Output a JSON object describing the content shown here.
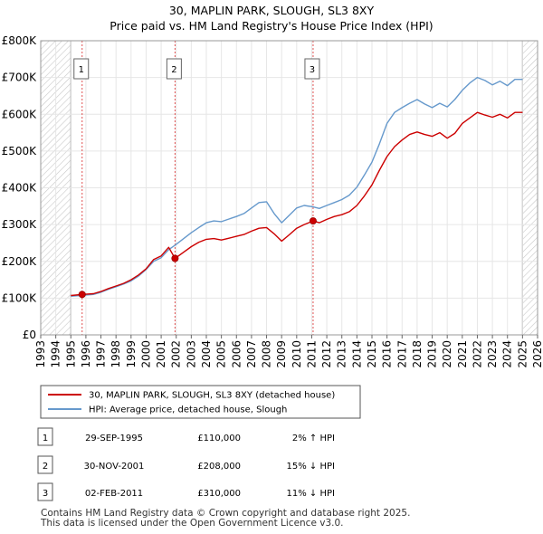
{
  "chart_data": {
    "type": "line",
    "title": "30, MAPLIN PARK, SLOUGH, SL3 8XY",
    "subtitle": "Price paid vs. HM Land Registry's House Price Index (HPI)",
    "xlabel": "",
    "ylabel": "",
    "xlim": [
      1993,
      2026
    ],
    "ylim": [
      0,
      800000
    ],
    "y_ticks": [
      0,
      100000,
      200000,
      300000,
      400000,
      500000,
      600000,
      700000,
      800000
    ],
    "y_tick_labels": [
      "£0",
      "£100K",
      "£200K",
      "£300K",
      "£400K",
      "£500K",
      "£600K",
      "£700K",
      "£800K"
    ],
    "x_ticks": [
      1993,
      1994,
      1995,
      1996,
      1997,
      1998,
      1999,
      2000,
      2001,
      2002,
      2003,
      2004,
      2005,
      2006,
      2007,
      2008,
      2009,
      2010,
      2011,
      2012,
      2013,
      2014,
      2015,
      2016,
      2017,
      2018,
      2019,
      2020,
      2021,
      2022,
      2023,
      2024,
      2025,
      2026
    ],
    "x_tick_labels": [
      "1993",
      "1994",
      "1995",
      "1996",
      "1997",
      "1998",
      "1999",
      "2000",
      "2001",
      "2002",
      "2003",
      "2004",
      "2005",
      "2006",
      "2007",
      "2008",
      "2009",
      "2010",
      "2011",
      "2012",
      "2013",
      "2014",
      "2015",
      "2016",
      "2017",
      "2018",
      "2019",
      "2020",
      "2021",
      "2022",
      "2023",
      "2024",
      "2025",
      "2026"
    ],
    "grid": true,
    "hatched_regions": [
      [
        1993,
        1995.0
      ],
      [
        2025.0,
        2026
      ]
    ],
    "series": [
      {
        "name": "30, MAPLIN PARK, SLOUGH, SL3 8XY (detached house)",
        "color": "#cc0000",
        "x": [
          1995.0,
          1995.75,
          1996.5,
          1997.0,
          1997.5,
          1998.0,
          1998.5,
          1999.0,
          1999.5,
          2000.0,
          2000.5,
          2001.0,
          2001.5,
          2001.92,
          2002.5,
          2003.0,
          2003.5,
          2004.0,
          2004.5,
          2005.0,
          2005.5,
          2006.0,
          2006.5,
          2007.0,
          2007.5,
          2008.0,
          2008.5,
          2009.0,
          2009.5,
          2010.0,
          2010.5,
          2011.09,
          2011.5,
          2012.0,
          2012.5,
          2013.0,
          2013.5,
          2014.0,
          2014.5,
          2015.0,
          2015.5,
          2016.0,
          2016.5,
          2017.0,
          2017.5,
          2018.0,
          2018.5,
          2019.0,
          2019.5,
          2020.0,
          2020.5,
          2021.0,
          2021.5,
          2022.0,
          2022.5,
          2023.0,
          2023.5,
          2024.0,
          2024.5,
          2025.0
        ],
        "values": [
          107000,
          110000,
          112000,
          118000,
          126000,
          133000,
          140000,
          150000,
          163000,
          180000,
          205000,
          215000,
          238000,
          208000,
          225000,
          240000,
          252000,
          260000,
          262000,
          258000,
          263000,
          268000,
          273000,
          282000,
          290000,
          292000,
          275000,
          255000,
          272000,
          290000,
          300000,
          310000,
          305000,
          314000,
          322000,
          327000,
          335000,
          352000,
          378000,
          408000,
          448000,
          485000,
          512000,
          530000,
          545000,
          552000,
          545000,
          540000,
          550000,
          535000,
          548000,
          575000,
          590000,
          605000,
          598000,
          592000,
          600000,
          590000,
          605000,
          605000
        ]
      },
      {
        "name": "HPI: Average price, detached house, Slough",
        "color": "#6699cc",
        "x": [
          1995.0,
          1995.75,
          1996.5,
          1997.0,
          1997.5,
          1998.0,
          1998.5,
          1999.0,
          1999.5,
          2000.0,
          2000.5,
          2001.0,
          2001.5,
          2001.92,
          2002.5,
          2003.0,
          2003.5,
          2004.0,
          2004.5,
          2005.0,
          2005.5,
          2006.0,
          2006.5,
          2007.0,
          2007.5,
          2008.0,
          2008.5,
          2009.0,
          2009.5,
          2010.0,
          2010.5,
          2011.09,
          2011.5,
          2012.0,
          2012.5,
          2013.0,
          2013.5,
          2014.0,
          2014.5,
          2015.0,
          2015.5,
          2016.0,
          2016.5,
          2017.0,
          2017.5,
          2018.0,
          2018.5,
          2019.0,
          2019.5,
          2020.0,
          2020.5,
          2021.0,
          2021.5,
          2022.0,
          2022.5,
          2023.0,
          2023.5,
          2024.0,
          2024.5,
          2025.0
        ],
        "values": [
          105000,
          107500,
          110000,
          116000,
          124000,
          131000,
          138000,
          147000,
          160000,
          178000,
          200000,
          210000,
          232000,
          244000,
          262000,
          278000,
          292000,
          305000,
          310000,
          308000,
          315000,
          322000,
          330000,
          345000,
          360000,
          362000,
          330000,
          305000,
          325000,
          345000,
          352000,
          348000,
          344000,
          352000,
          360000,
          368000,
          380000,
          402000,
          435000,
          470000,
          520000,
          575000,
          605000,
          618000,
          630000,
          640000,
          628000,
          618000,
          630000,
          620000,
          640000,
          665000,
          685000,
          700000,
          692000,
          680000,
          690000,
          678000,
          695000,
          695000
        ]
      }
    ],
    "sales": [
      {
        "marker": "1",
        "x": 1995.75,
        "value": 110000,
        "date": "29-SEP-1995",
        "price": "£110,000",
        "hpi": "2% ↑ HPI"
      },
      {
        "marker": "2",
        "x": 2001.92,
        "value": 208000,
        "date": "30-NOV-2001",
        "price": "£208,000",
        "hpi": "15% ↓ HPI"
      },
      {
        "marker": "3",
        "x": 2011.09,
        "value": 310000,
        "date": "02-FEB-2011",
        "price": "£310,000",
        "hpi": "11% ↓ HPI"
      }
    ]
  },
  "legend": {
    "property_label": "30, MAPLIN PARK, SLOUGH, SL3 8XY (detached house)",
    "hpi_label": "HPI: Average price, detached house, Slough",
    "property_color": "#cc0000",
    "hpi_color": "#6699cc"
  },
  "footer": {
    "line1": "Contains HM Land Registry data © Crown copyright and database right 2025.",
    "line2": "This data is licensed under the Open Government Licence v3.0."
  }
}
